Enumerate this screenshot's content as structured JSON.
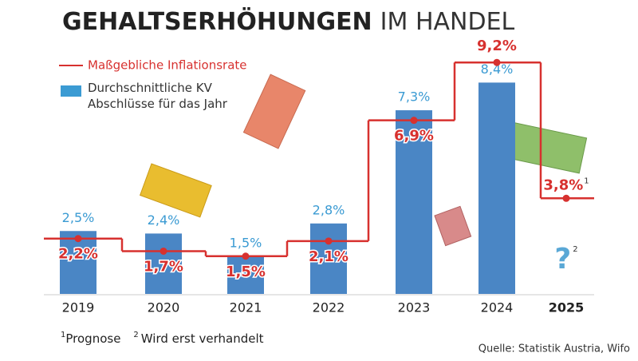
{
  "chart_data": {
    "type": "bar-step",
    "title_parts": [
      "GEHALTSERHÖHUNGEN",
      "IM HANDEL"
    ],
    "categories": [
      "2019",
      "2020",
      "2021",
      "2022",
      "2023",
      "2024",
      "2025"
    ],
    "series": [
      {
        "name": "Durchschnittliche KV Abschlüsse für das Jahr",
        "kind": "bar",
        "color": "#4a86c5",
        "label_color": "#3b9bd3",
        "values": [
          2.5,
          2.4,
          1.5,
          2.8,
          7.3,
          8.4,
          null
        ],
        "value_labels": [
          "2,5%",
          "2,4%",
          "1,5%",
          "2,8%",
          "7,3%",
          "8,4%",
          null
        ]
      },
      {
        "name": "Maßgebliche Inflationsrate",
        "kind": "step",
        "color": "#d7312f",
        "values": [
          2.2,
          1.7,
          1.5,
          2.1,
          6.9,
          9.2,
          3.8
        ],
        "value_labels": [
          "2,2%",
          "1,7%",
          "1,5%",
          "2,1%",
          "6,9%",
          "9,2%",
          "3,8%"
        ]
      }
    ],
    "missing_value_mark": "?",
    "footnotes": [
      {
        "marker": "1",
        "text": "Prognose"
      },
      {
        "marker": "2",
        "text": "Wird erst verhandelt"
      }
    ],
    "source": "Quelle: Statistik Austria, Wifo"
  }
}
